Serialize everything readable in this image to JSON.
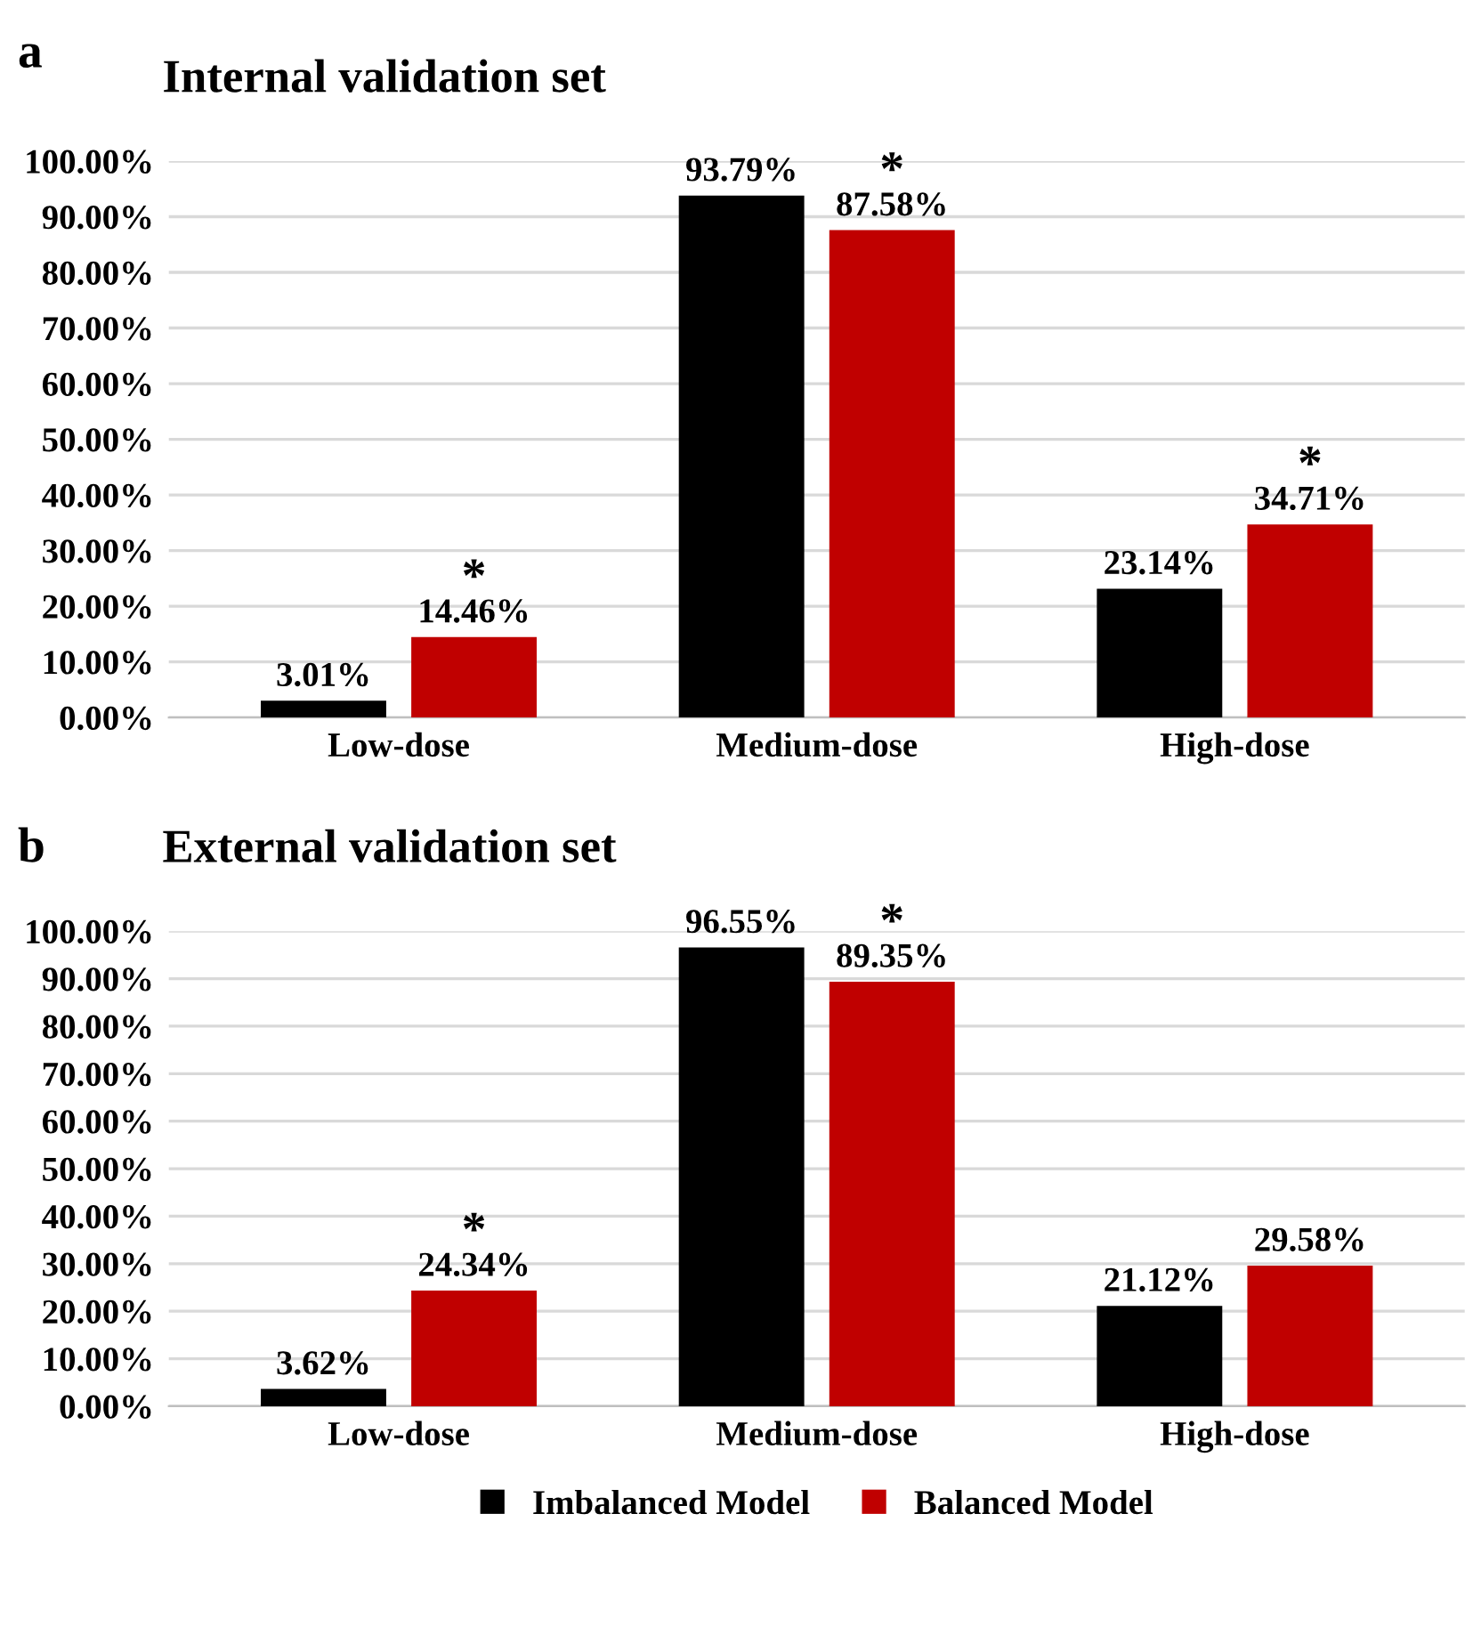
{
  "chart_data": [
    {
      "type": "bar",
      "title": "Internal validation set",
      "annotations": [
        "a",
        "*",
        "*",
        "*"
      ],
      "categories": [
        "Low-dose",
        "Medium-dose",
        "High-dose"
      ],
      "series": [
        {
          "color": "#000000",
          "values": [
            3.01,
            93.79,
            23.14
          ],
          "value_labels": [
            "3.01%",
            "93.79%",
            "23.14%"
          ]
        },
        {
          "color": "#c00000",
          "values": [
            14.46,
            87.58,
            34.71
          ],
          "value_labels": [
            "14.46%",
            "87.58%",
            "34.71%"
          ]
        }
      ],
      "ylim": [
        0,
        100
      ],
      "yticks": [
        {
          "value": 0,
          "label": "0.00%"
        },
        {
          "value": 10,
          "label": "10.00%"
        },
        {
          "value": 20,
          "label": "20.00%"
        },
        {
          "value": 30,
          "label": "30.00%"
        },
        {
          "value": 40,
          "label": "40.00%"
        },
        {
          "value": 50,
          "label": "50.00%"
        },
        {
          "value": 60,
          "label": "60.00%"
        },
        {
          "value": 70,
          "label": "70.00%"
        },
        {
          "value": 80,
          "label": "80.00%"
        },
        {
          "value": 90,
          "label": "90.00%"
        },
        {
          "value": 100,
          "label": "100.00%"
        }
      ],
      "grid": "y"
    },
    {
      "type": "bar",
      "title": "External validation set",
      "annotations": [
        "b",
        "*",
        "*"
      ],
      "categories": [
        "Low-dose",
        "Medium-dose",
        "High-dose"
      ],
      "series": [
        {
          "name": "Imbalanced Model",
          "color": "#000000",
          "values": [
            3.62,
            96.55,
            21.12
          ],
          "value_labels": [
            "3.62%",
            "96.55%",
            "21.12%"
          ]
        },
        {
          "name": "Balanced Model",
          "color": "#c00000",
          "values": [
            24.34,
            89.35,
            29.58
          ],
          "value_labels": [
            "24.34%",
            "89.35%",
            "29.58%"
          ]
        }
      ],
      "ylim": [
        0,
        100
      ],
      "yticks": [
        {
          "value": 0,
          "label": "0.00%"
        },
        {
          "value": 10,
          "label": "10.00%"
        },
        {
          "value": 20,
          "label": "20.00%"
        },
        {
          "value": 30,
          "label": "30.00%"
        },
        {
          "value": 40,
          "label": "40.00%"
        },
        {
          "value": 50,
          "label": "50.00%"
        },
        {
          "value": 60,
          "label": "60.00%"
        },
        {
          "value": 70,
          "label": "70.00%"
        },
        {
          "value": 80,
          "label": "80.00%"
        },
        {
          "value": 90,
          "label": "90.00%"
        },
        {
          "value": 100,
          "label": "100.00%"
        }
      ],
      "grid": "y",
      "legend": "bottom"
    }
  ]
}
